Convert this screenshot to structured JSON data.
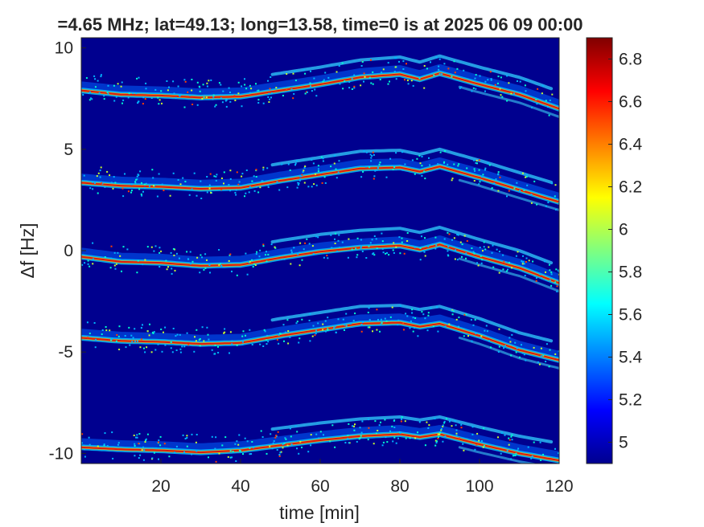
{
  "chart_data": {
    "type": "heatmap",
    "title": "=4.65 MHz;  lat=49.13; long=13.58, time=0 is at 2025 06 09 00:00",
    "xlabel": "time [min]",
    "ylabel": "Δf [Hz]",
    "xlim": [
      0,
      120
    ],
    "ylim": [
      -10.5,
      10.5
    ],
    "x_ticks": [
      {
        "value": 20,
        "label": "20"
      },
      {
        "value": 40,
        "label": "40"
      },
      {
        "value": 60,
        "label": "60"
      },
      {
        "value": 80,
        "label": "80"
      },
      {
        "value": 100,
        "label": "100"
      },
      {
        "value": 120,
        "label": "120"
      }
    ],
    "y_ticks": [
      {
        "value": 10,
        "label": "10"
      },
      {
        "value": 5,
        "label": "5"
      },
      {
        "value": 0,
        "label": "0"
      },
      {
        "value": -5,
        "label": "-5"
      },
      {
        "value": -10,
        "label": "-10"
      }
    ],
    "colorbar": {
      "colormap": "jet",
      "range": [
        4.9,
        6.9
      ],
      "ticks": [
        {
          "value": 5,
          "label": "5"
        },
        {
          "value": 5.2,
          "label": "5.2"
        },
        {
          "value": 5.4,
          "label": "5.4"
        },
        {
          "value": 5.6,
          "label": "5.6"
        },
        {
          "value": 5.8,
          "label": "5.8"
        },
        {
          "value": 6,
          "label": "6"
        },
        {
          "value": 6.2,
          "label": "6.2"
        },
        {
          "value": 6.4,
          "label": "6.4"
        },
        {
          "value": 6.6,
          "label": "6.6"
        },
        {
          "value": 6.8,
          "label": "6.8"
        }
      ]
    },
    "background_value": 4.9,
    "grid": false,
    "traces": [
      {
        "offset": 7.8,
        "points": [
          [
            0,
            7.9
          ],
          [
            10,
            7.7
          ],
          [
            20,
            7.65
          ],
          [
            30,
            7.55
          ],
          [
            40,
            7.6
          ],
          [
            50,
            7.9
          ],
          [
            60,
            8.2
          ],
          [
            70,
            8.55
          ],
          [
            80,
            8.7
          ],
          [
            85,
            8.45
          ],
          [
            90,
            8.75
          ],
          [
            100,
            8.2
          ],
          [
            110,
            7.7
          ],
          [
            120,
            7.0
          ]
        ]
      },
      {
        "offset": 3.2,
        "points": [
          [
            0,
            3.35
          ],
          [
            10,
            3.2
          ],
          [
            20,
            3.15
          ],
          [
            30,
            3.05
          ],
          [
            40,
            3.1
          ],
          [
            50,
            3.45
          ],
          [
            60,
            3.75
          ],
          [
            70,
            4.05
          ],
          [
            80,
            4.1
          ],
          [
            85,
            3.9
          ],
          [
            90,
            4.15
          ],
          [
            100,
            3.6
          ],
          [
            110,
            3.0
          ],
          [
            120,
            2.4
          ]
        ]
      },
      {
        "offset": -0.6,
        "points": [
          [
            0,
            -0.3
          ],
          [
            10,
            -0.55
          ],
          [
            20,
            -0.6
          ],
          [
            30,
            -0.75
          ],
          [
            40,
            -0.7
          ],
          [
            50,
            -0.35
          ],
          [
            60,
            -0.05
          ],
          [
            70,
            0.15
          ],
          [
            80,
            0.25
          ],
          [
            85,
            0.05
          ],
          [
            90,
            0.3
          ],
          [
            100,
            -0.3
          ],
          [
            110,
            -0.85
          ],
          [
            120,
            -1.6
          ]
        ]
      },
      {
        "offset": -4.5,
        "points": [
          [
            0,
            -4.3
          ],
          [
            10,
            -4.45
          ],
          [
            20,
            -4.5
          ],
          [
            30,
            -4.6
          ],
          [
            40,
            -4.55
          ],
          [
            50,
            -4.2
          ],
          [
            60,
            -3.9
          ],
          [
            70,
            -3.6
          ],
          [
            80,
            -3.55
          ],
          [
            85,
            -3.75
          ],
          [
            90,
            -3.6
          ],
          [
            100,
            -4.2
          ],
          [
            110,
            -4.9
          ],
          [
            120,
            -5.4
          ]
        ]
      },
      {
        "offset": -9.8,
        "points": [
          [
            0,
            -9.7
          ],
          [
            10,
            -9.8
          ],
          [
            20,
            -9.85
          ],
          [
            30,
            -9.95
          ],
          [
            40,
            -9.85
          ],
          [
            50,
            -9.6
          ],
          [
            60,
            -9.35
          ],
          [
            70,
            -9.15
          ],
          [
            80,
            -9.05
          ],
          [
            85,
            -9.2
          ],
          [
            90,
            -9.05
          ],
          [
            100,
            -9.55
          ],
          [
            110,
            -10.0
          ],
          [
            120,
            -10.35
          ]
        ]
      }
    ]
  }
}
